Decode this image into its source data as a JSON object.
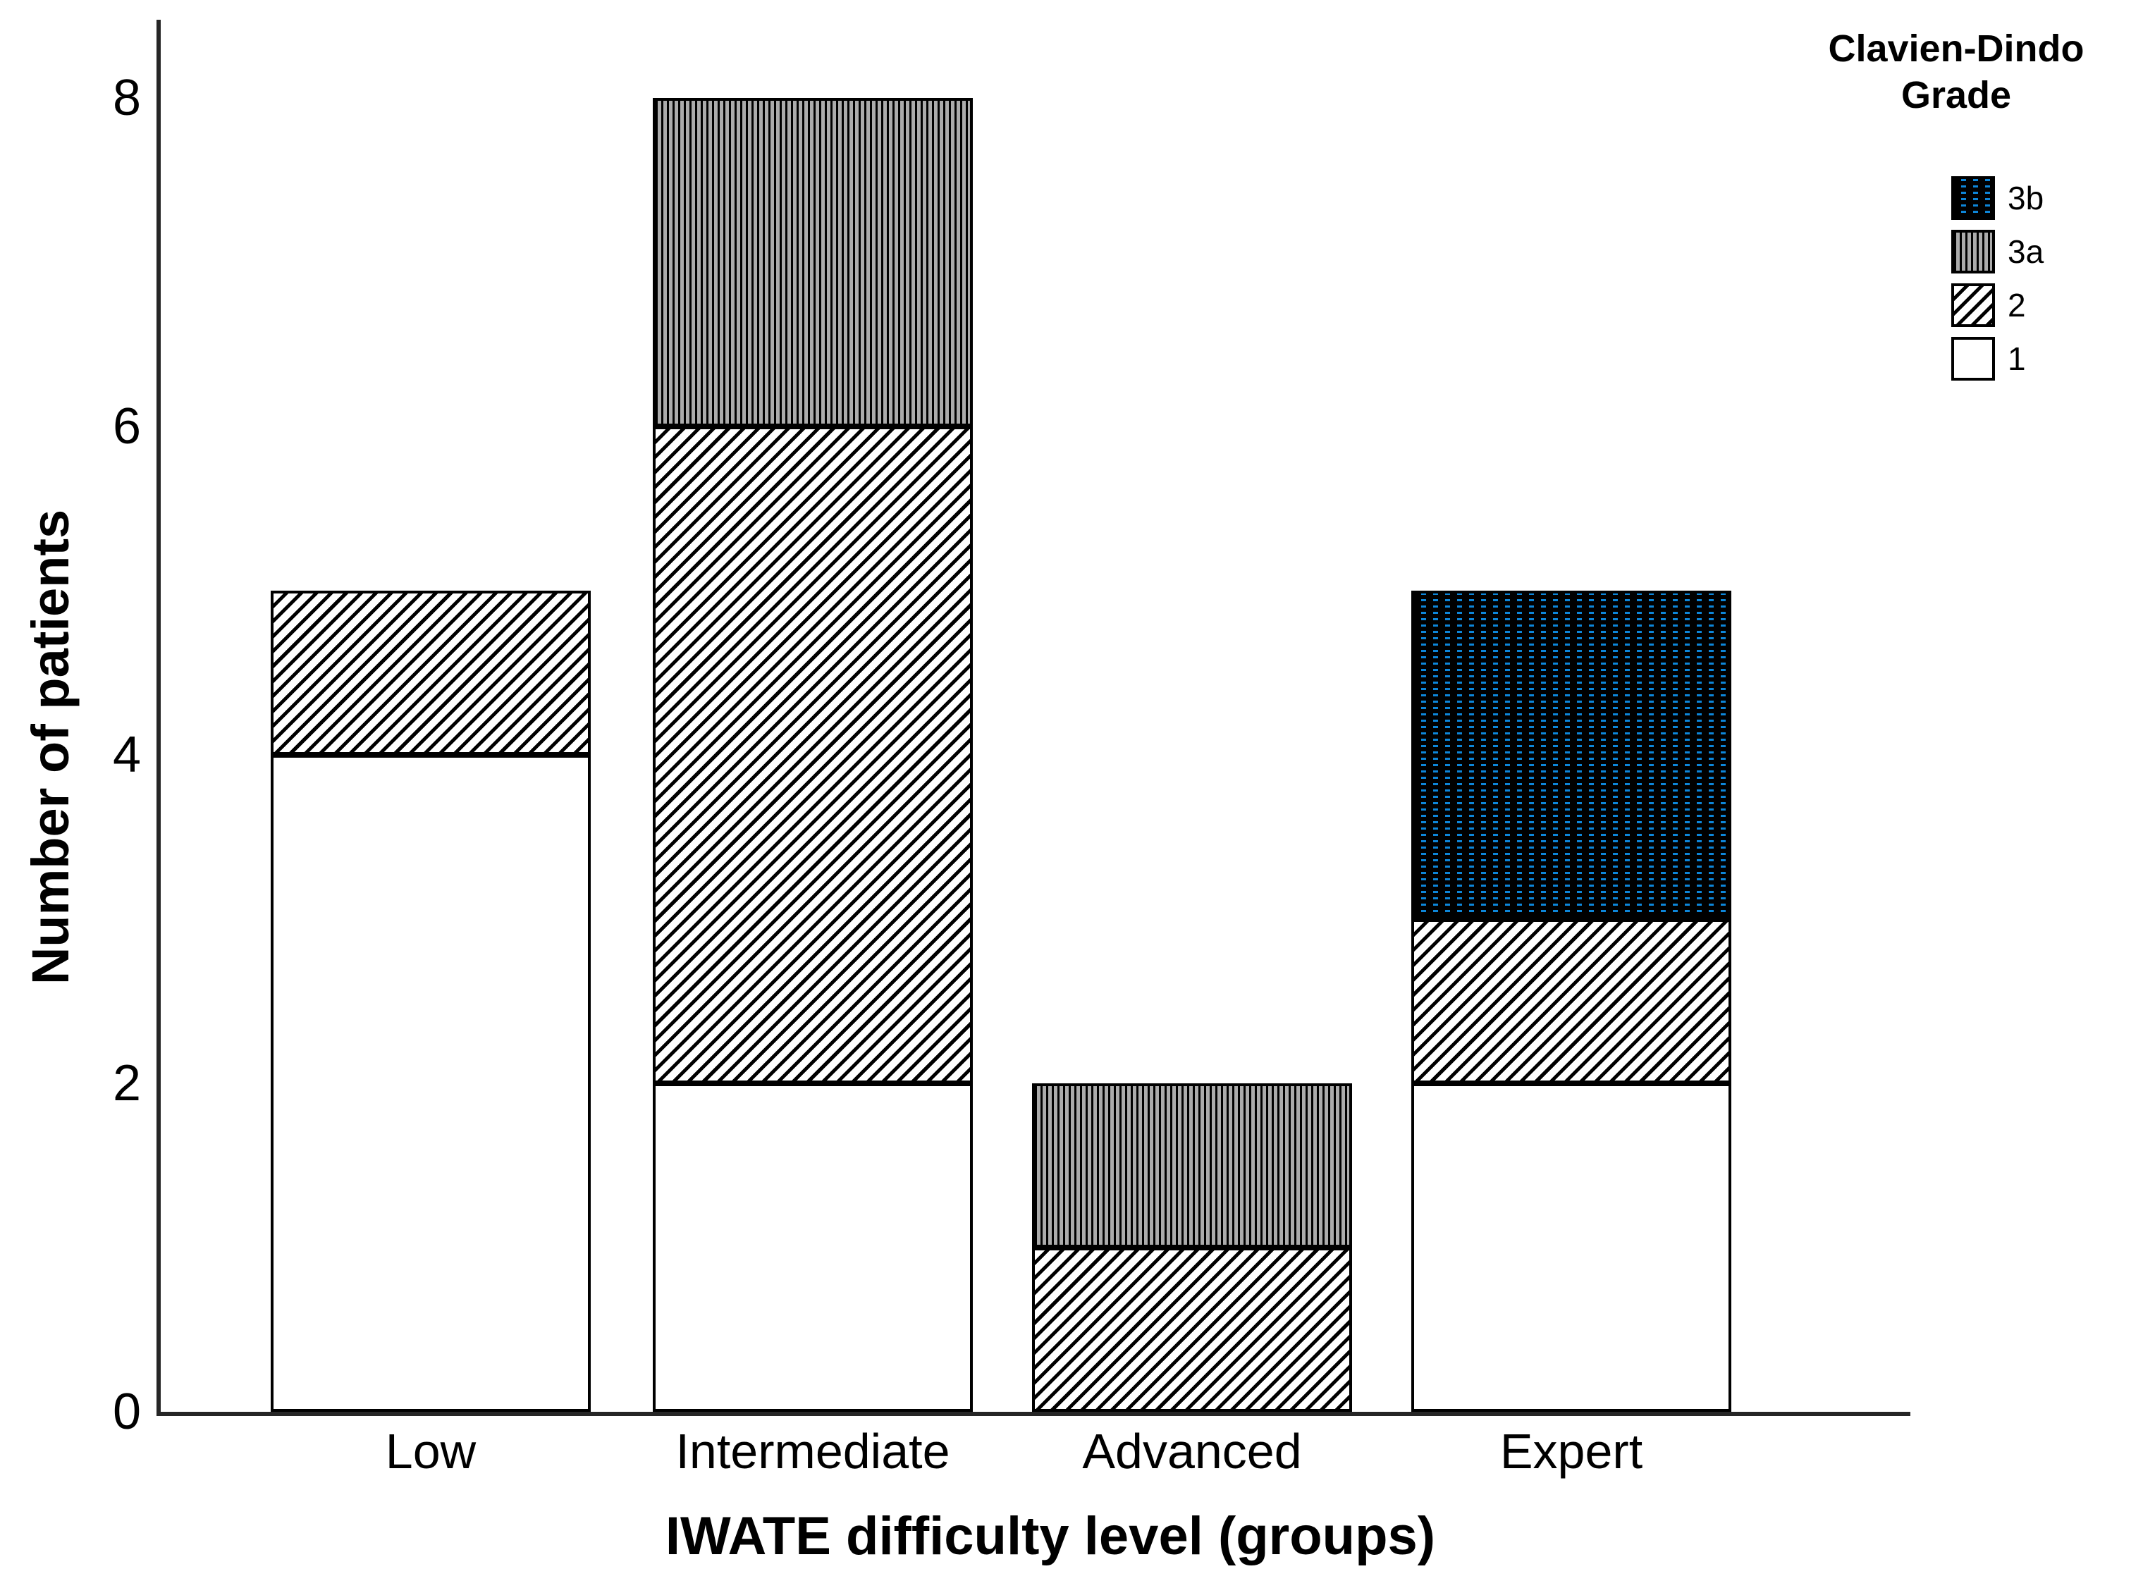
{
  "chart_data": {
    "type": "bar",
    "stacked": true,
    "xlabel": "IWATE difficulty level (groups)",
    "ylabel": "Number of patients",
    "categories": [
      "Low",
      "Intermediate",
      "Advanced",
      "Expert"
    ],
    "yticks": [
      0,
      2,
      4,
      6,
      8
    ],
    "ylim": [
      0,
      8.5
    ],
    "grid": false,
    "colors": {
      "axis": "#262626",
      "bar_outline": "#000000",
      "hatch_line": "#000000",
      "stripe_line": "#000000",
      "stripe_gap": "#ababab",
      "dot_blue": "#0d86d9",
      "dot_background": "#000000",
      "background": "#ffffff"
    },
    "series": [
      {
        "name": "1",
        "pattern": "solid-white",
        "values": [
          4,
          2,
          0,
          2
        ]
      },
      {
        "name": "2",
        "pattern": "diagonal-hatch",
        "values": [
          1,
          4,
          1,
          1
        ]
      },
      {
        "name": "3a",
        "pattern": "vertical-stripes",
        "values": [
          0,
          2,
          1,
          0
        ]
      },
      {
        "name": "3b",
        "pattern": "blue-dots-on-black",
        "values": [
          0,
          0,
          0,
          2
        ]
      }
    ],
    "totals": [
      5,
      8,
      2,
      5
    ],
    "legend": {
      "title_lines": [
        "Clavien-Dindo",
        "Grade"
      ],
      "position": "top-right",
      "entries": [
        {
          "label": "3b",
          "pattern": "blue-dots-on-black"
        },
        {
          "label": "3a",
          "pattern": "vertical-stripes"
        },
        {
          "label": "2",
          "pattern": "diagonal-hatch"
        },
        {
          "label": "1",
          "pattern": "solid-white"
        }
      ]
    }
  }
}
